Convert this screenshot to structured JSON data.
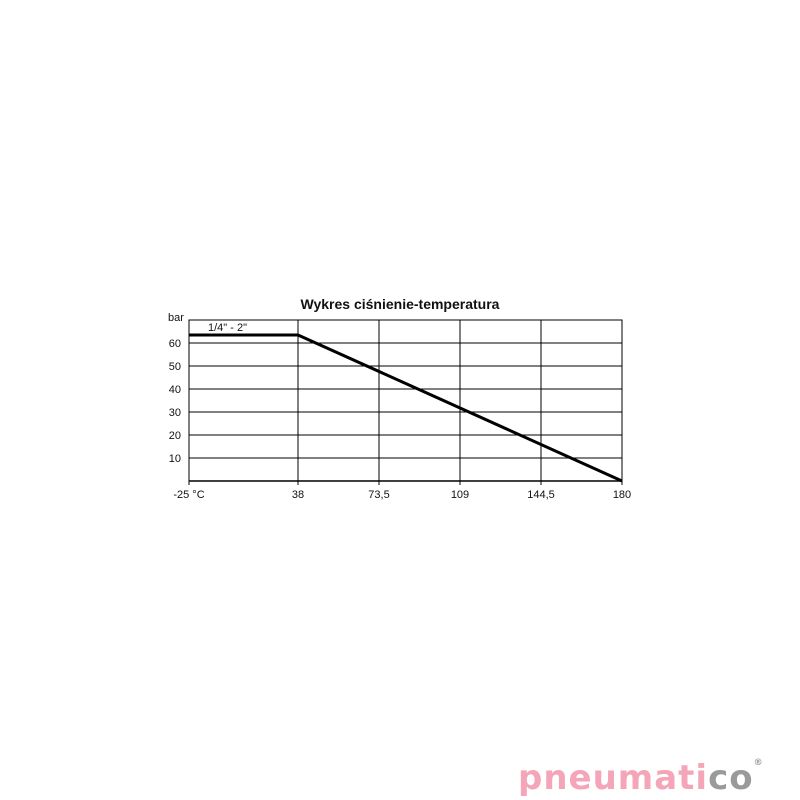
{
  "chart_data": {
    "type": "line",
    "title": "Wykres ciśnienie-temperatura",
    "ylabel": "bar",
    "xlabel": "",
    "x_ticks": [
      "-25 °C",
      "38",
      "73,5",
      "109",
      "144,5",
      "180"
    ],
    "x_tick_values": [
      -25,
      38,
      73.5,
      109,
      144.5,
      180
    ],
    "y_ticks": [
      "10",
      "20",
      "30",
      "40",
      "50",
      "60"
    ],
    "y_tick_values": [
      10,
      20,
      30,
      40,
      50,
      60
    ],
    "ylim": [
      0,
      70
    ],
    "xlim": [
      -25,
      180
    ],
    "grid": true,
    "series": [
      {
        "name": "1/4\" - 2\"",
        "x": [
          -25,
          38,
          180
        ],
        "y": [
          63.5,
          63.5,
          0
        ]
      }
    ],
    "line_color": "#000000"
  },
  "logo": {
    "text_pink": "pneumati",
    "text_gray": "co",
    "mark": "®",
    "pink": "#f4a6b8",
    "gray": "#9a9a9a"
  }
}
